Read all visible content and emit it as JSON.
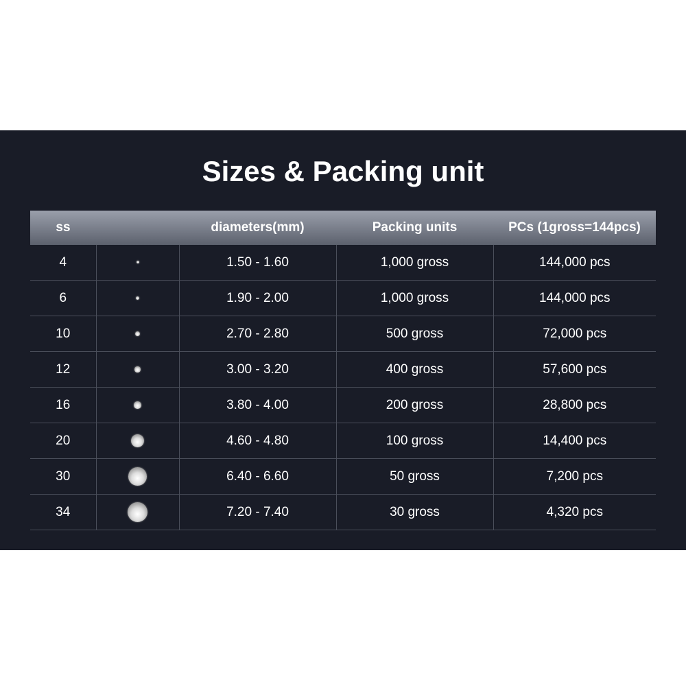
{
  "title": "Sizes & Packing unit",
  "headers": [
    "ss",
    "",
    "diameters(mm)",
    "Packing units",
    "PCs (1gross=144pcs)"
  ],
  "rows": [
    {
      "ss": "4",
      "diameter": "1.50 - 1.60",
      "packing": "1,000 gross",
      "pcs": "144,000 pcs",
      "gem_mm": 1.55
    },
    {
      "ss": "6",
      "diameter": "1.90 - 2.00",
      "packing": "1,000 gross",
      "pcs": "144,000 pcs",
      "gem_mm": 1.95
    },
    {
      "ss": "10",
      "diameter": "2.70 - 2.80",
      "packing": "500 gross",
      "pcs": "72,000 pcs",
      "gem_mm": 2.75
    },
    {
      "ss": "12",
      "diameter": "3.00 - 3.20",
      "packing": "400 gross",
      "pcs": "57,600 pcs",
      "gem_mm": 3.1
    },
    {
      "ss": "16",
      "diameter": "3.80 - 4.00",
      "packing": "200 gross",
      "pcs": "28,800 pcs",
      "gem_mm": 3.9
    },
    {
      "ss": "20",
      "diameter": "4.60 - 4.80",
      "packing": "100 gross",
      "pcs": "14,400 pcs",
      "gem_mm": 4.7
    },
    {
      "ss": "30",
      "diameter": "6.40 - 6.60",
      "packing": "50 gross",
      "pcs": "7,200 pcs",
      "gem_mm": 6.5
    },
    {
      "ss": "34",
      "diameter": "7.20 - 7.40",
      "packing": "30 gross",
      "pcs": "4,320 pcs",
      "gem_mm": 7.3
    }
  ]
}
